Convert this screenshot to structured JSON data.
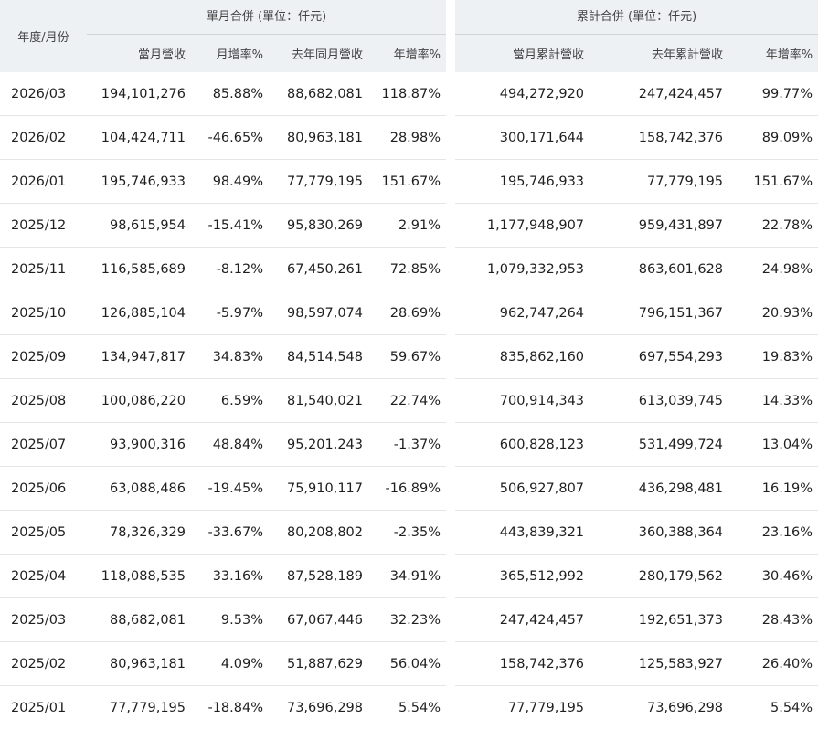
{
  "header": {
    "year_month": "年度/月份",
    "monthly_group": "單月合併 (單位：仟元)",
    "cumulative_group": "累計合併 (單位：仟元)",
    "columns": [
      "當月營收",
      "月增率%",
      "去年同月營收",
      "年增率%",
      "當月累計營收",
      "去年累計營收",
      "年增率%"
    ]
  },
  "rows": [
    [
      "2026/03",
      "194,101,276",
      "85.88%",
      "88,682,081",
      "118.87%",
      "494,272,920",
      "247,424,457",
      "99.77%"
    ],
    [
      "2026/02",
      "104,424,711",
      "-46.65%",
      "80,963,181",
      "28.98%",
      "300,171,644",
      "158,742,376",
      "89.09%"
    ],
    [
      "2026/01",
      "195,746,933",
      "98.49%",
      "77,779,195",
      "151.67%",
      "195,746,933",
      "77,779,195",
      "151.67%"
    ],
    [
      "2025/12",
      "98,615,954",
      "-15.41%",
      "95,830,269",
      "2.91%",
      "1,177,948,907",
      "959,431,897",
      "22.78%"
    ],
    [
      "2025/11",
      "116,585,689",
      "-8.12%",
      "67,450,261",
      "72.85%",
      "1,079,332,953",
      "863,601,628",
      "24.98%"
    ],
    [
      "2025/10",
      "126,885,104",
      "-5.97%",
      "98,597,074",
      "28.69%",
      "962,747,264",
      "796,151,367",
      "20.93%"
    ],
    [
      "2025/09",
      "134,947,817",
      "34.83%",
      "84,514,548",
      "59.67%",
      "835,862,160",
      "697,554,293",
      "19.83%"
    ],
    [
      "2025/08",
      "100,086,220",
      "6.59%",
      "81,540,021",
      "22.74%",
      "700,914,343",
      "613,039,745",
      "14.33%"
    ],
    [
      "2025/07",
      "93,900,316",
      "48.84%",
      "95,201,243",
      "-1.37%",
      "600,828,123",
      "531,499,724",
      "13.04%"
    ],
    [
      "2025/06",
      "63,088,486",
      "-19.45%",
      "75,910,117",
      "-16.89%",
      "506,927,807",
      "436,298,481",
      "16.19%"
    ],
    [
      "2025/05",
      "78,326,329",
      "-33.67%",
      "80,208,802",
      "-2.35%",
      "443,839,321",
      "360,388,364",
      "23.16%"
    ],
    [
      "2025/04",
      "118,088,535",
      "33.16%",
      "87,528,189",
      "34.91%",
      "365,512,992",
      "280,179,562",
      "30.46%"
    ],
    [
      "2025/03",
      "88,682,081",
      "9.53%",
      "67,067,446",
      "32.23%",
      "247,424,457",
      "192,651,373",
      "28.43%"
    ],
    [
      "2025/02",
      "80,963,181",
      "4.09%",
      "51,887,629",
      "56.04%",
      "158,742,376",
      "125,583,927",
      "26.40%"
    ],
    [
      "2025/01",
      "77,779,195",
      "-18.84%",
      "73,696,298",
      "5.54%",
      "77,779,195",
      "73,696,298",
      "5.54%"
    ]
  ]
}
